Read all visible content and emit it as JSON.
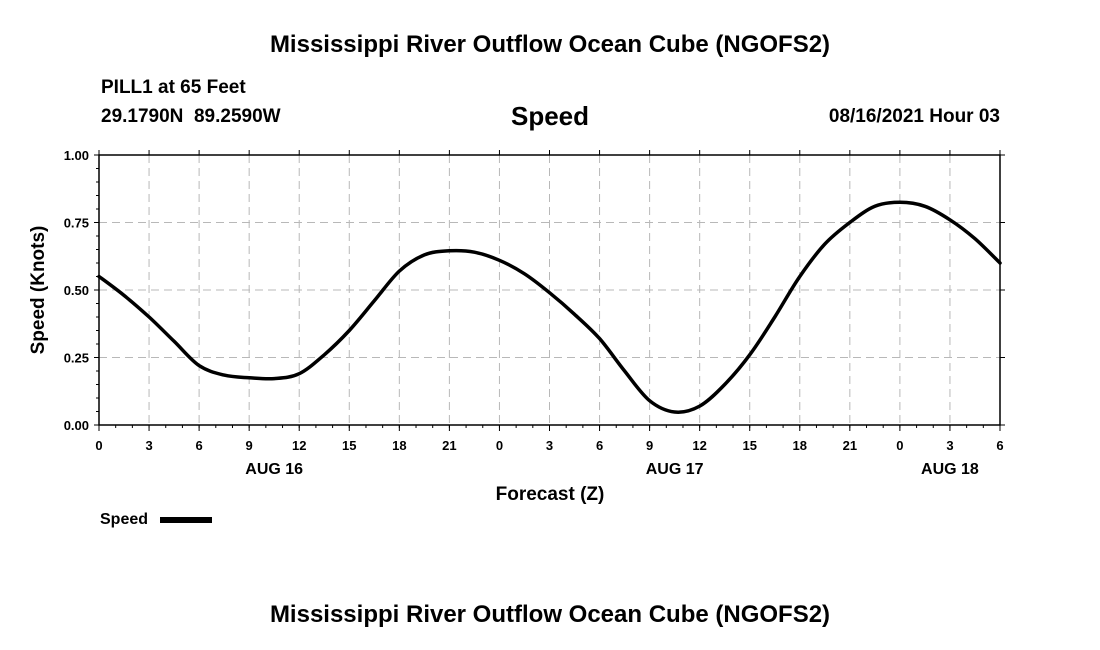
{
  "header": {
    "title": "Mississippi River Outflow Ocean Cube (NGOFS2)",
    "station": "PILL1 at 65 Feet",
    "coords": "29.1790N  89.2590W",
    "variable": "Speed",
    "datetime": "08/16/2021 Hour 03"
  },
  "footer": {
    "title": "Mississippi River Outflow Ocean Cube (NGOFS2)"
  },
  "legend": {
    "label": "Speed",
    "color": "#000000"
  },
  "chart_data": {
    "type": "line",
    "xlabel": "Forecast (Z)",
    "ylabel": "Speed (Knots)",
    "ylim": [
      0,
      1
    ],
    "xlim": [
      0,
      54
    ],
    "grid": true,
    "legend_position": "bottom-left",
    "y_ticks": [
      "0.00",
      "0.25",
      "0.50",
      "0.75",
      "1.00"
    ],
    "x_ticks": [
      {
        "x": 0,
        "label": "0"
      },
      {
        "x": 3,
        "label": "3"
      },
      {
        "x": 6,
        "label": "6"
      },
      {
        "x": 9,
        "label": "9"
      },
      {
        "x": 12,
        "label": "12"
      },
      {
        "x": 15,
        "label": "15"
      },
      {
        "x": 18,
        "label": "18"
      },
      {
        "x": 21,
        "label": "21"
      },
      {
        "x": 24,
        "label": "0"
      },
      {
        "x": 27,
        "label": "3"
      },
      {
        "x": 30,
        "label": "6"
      },
      {
        "x": 33,
        "label": "9"
      },
      {
        "x": 36,
        "label": "12"
      },
      {
        "x": 39,
        "label": "15"
      },
      {
        "x": 42,
        "label": "18"
      },
      {
        "x": 45,
        "label": "21"
      },
      {
        "x": 48,
        "label": "0"
      },
      {
        "x": 51,
        "label": "3"
      },
      {
        "x": 54,
        "label": "6"
      }
    ],
    "date_labels": [
      {
        "x": 10.5,
        "label": "AUG 16"
      },
      {
        "x": 34.5,
        "label": "AUG 17"
      },
      {
        "x": 51,
        "label": "AUG 18"
      }
    ],
    "series": [
      {
        "name": "Speed",
        "color": "#000000",
        "x": [
          0,
          1.5,
          3,
          4.5,
          6,
          7.5,
          9,
          10.5,
          12,
          13.5,
          15,
          16.5,
          18,
          19.5,
          21,
          22.5,
          24,
          25.5,
          27,
          28.5,
          30,
          31.5,
          33,
          34.5,
          36,
          37.5,
          39,
          40.5,
          42,
          43.5,
          45,
          46.5,
          48,
          49.5,
          51,
          52.5,
          54
        ],
        "values": [
          0.55,
          0.48,
          0.4,
          0.31,
          0.22,
          0.185,
          0.175,
          0.172,
          0.19,
          0.26,
          0.35,
          0.46,
          0.57,
          0.63,
          0.645,
          0.64,
          0.61,
          0.56,
          0.49,
          0.41,
          0.32,
          0.2,
          0.09,
          0.048,
          0.07,
          0.15,
          0.26,
          0.4,
          0.55,
          0.67,
          0.75,
          0.81,
          0.825,
          0.81,
          0.76,
          0.69,
          0.6
        ]
      }
    ]
  }
}
